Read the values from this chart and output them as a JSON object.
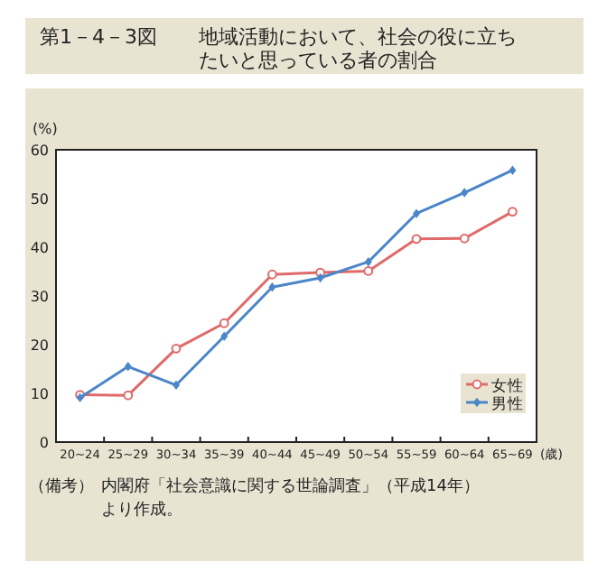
{
  "chart_data": {
    "type": "line",
    "title": "第1－4－3図",
    "subtitle": "地域活動において、社会の役に立ちたいと思っている者の割合",
    "ylabel": "(%)",
    "xlabel": "(歳)",
    "categories": [
      "20~24",
      "25~29",
      "30~34",
      "35~39",
      "40~44",
      "45~49",
      "50~54",
      "55~59",
      "60~64",
      "65~69"
    ],
    "series": [
      {
        "name": "女性",
        "color": "#e06a6a",
        "marker": "circle",
        "values": [
          9.7,
          9.6,
          19.2,
          24.4,
          34.4,
          34.8,
          35.1,
          41.7,
          41.8,
          47.3
        ]
      },
      {
        "name": "男性",
        "color": "#4a86c8",
        "marker": "diamond",
        "values": [
          9.1,
          15.5,
          11.7,
          21.7,
          31.8,
          33.7,
          37.0,
          46.9,
          51.2,
          55.8
        ]
      }
    ],
    "ylim": [
      0,
      60
    ],
    "yticks": [
      0,
      10,
      20,
      30,
      40,
      50,
      60
    ],
    "grid": false,
    "legend": "bottom right",
    "annotations": [
      "（備考）内閣府「社会意識に関する世論調査」（平成14年）より作成。"
    ]
  }
}
